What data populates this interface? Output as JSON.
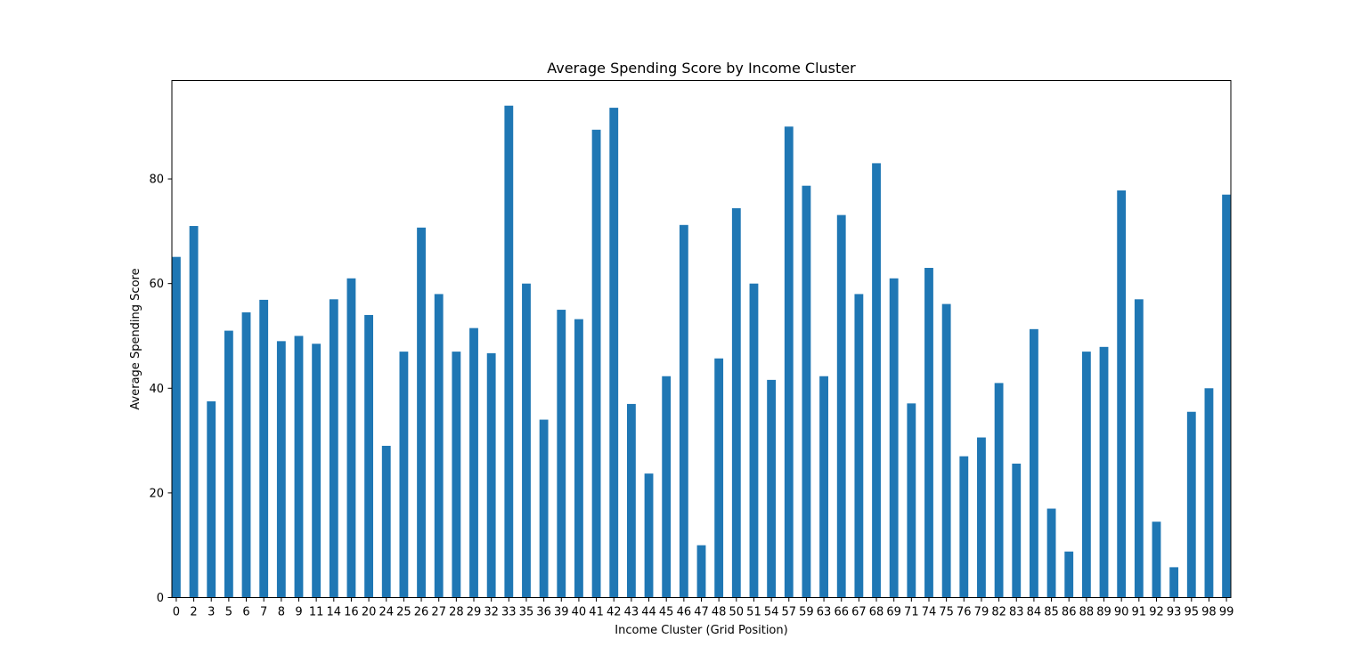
{
  "chart_data": {
    "type": "bar",
    "title": "Average Spending Score by Income Cluster",
    "xlabel": "Income Cluster (Grid Position)",
    "ylabel": "Average Spending Score",
    "ylim": [
      0,
      98.8
    ],
    "yticks": [
      0,
      20,
      40,
      60,
      80
    ],
    "grid": false,
    "bar_color": "#1f77b4",
    "categories": [
      "0",
      "2",
      "3",
      "5",
      "6",
      "7",
      "8",
      "9",
      "11",
      "14",
      "16",
      "20",
      "24",
      "25",
      "26",
      "27",
      "28",
      "29",
      "32",
      "33",
      "35",
      "36",
      "39",
      "40",
      "41",
      "42",
      "43",
      "44",
      "45",
      "46",
      "47",
      "48",
      "50",
      "51",
      "54",
      "57",
      "59",
      "63",
      "66",
      "67",
      "68",
      "69",
      "71",
      "74",
      "75",
      "76",
      "79",
      "82",
      "83",
      "84",
      "85",
      "86",
      "88",
      "89",
      "90",
      "91",
      "92",
      "93",
      "95",
      "98",
      "99"
    ],
    "values": [
      65.1,
      71.0,
      37.5,
      51.0,
      54.5,
      56.9,
      49.0,
      50.0,
      48.5,
      57.0,
      61.0,
      54.0,
      29.0,
      47.0,
      70.7,
      58.0,
      47.0,
      51.5,
      46.7,
      94.0,
      60.0,
      34.0,
      55.0,
      53.2,
      89.4,
      93.6,
      37.0,
      23.7,
      42.3,
      71.2,
      10.0,
      45.7,
      74.4,
      60.0,
      41.6,
      90.0,
      78.7,
      42.3,
      73.1,
      58.0,
      83.0,
      61.0,
      37.1,
      63.0,
      56.1,
      27.0,
      30.6,
      41.0,
      25.6,
      51.3,
      17.0,
      8.8,
      47.0,
      47.9,
      77.8,
      57.0,
      14.5,
      5.8,
      35.5,
      40.0,
      77.0
    ]
  }
}
